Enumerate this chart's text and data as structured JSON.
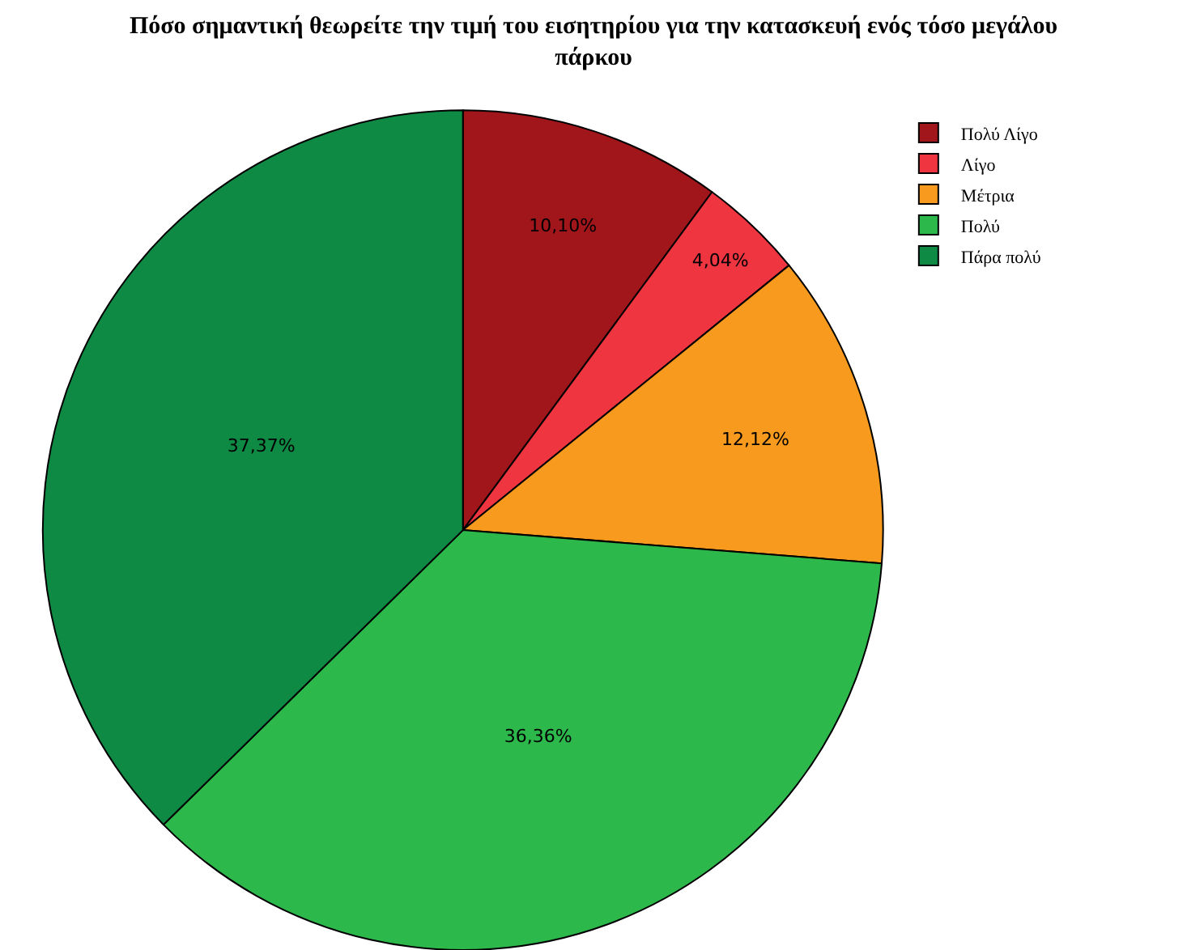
{
  "chart_data": {
    "type": "pie",
    "title": "Πόσο σημαντική θεωρείτε την τιμή του εισητηρίου για την κατασκευή ενός τόσο μεγάλου πάρκου",
    "categories": [
      "Πολύ Λίγο",
      "Λίγο",
      "Μέτρια",
      "Πολύ",
      "Πάρα πολύ"
    ],
    "values": [
      10.1,
      4.04,
      12.12,
      36.36,
      37.37
    ],
    "value_labels": [
      "10,10%",
      "4,04%",
      "12,12%",
      "36,36%",
      "37,37%"
    ],
    "colors": [
      "#a0161a",
      "#ee3540",
      "#f79a1e",
      "#2db84b",
      "#0f8a45"
    ],
    "legend": "top right"
  }
}
